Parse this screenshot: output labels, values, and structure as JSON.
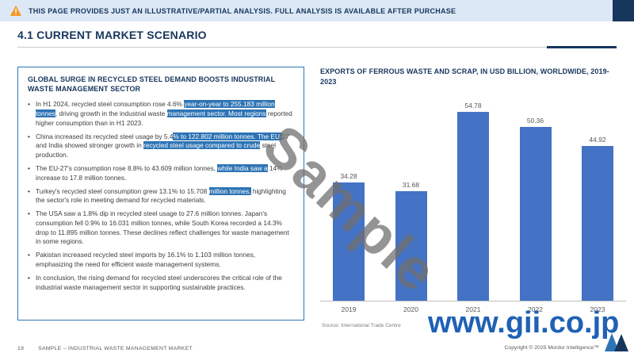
{
  "banner": {
    "text": "THIS PAGE PROVIDES JUST AN ILLUSTRATIVE/PARTIAL ANALYSIS. FULL ANALYSIS IS AVAILABLE AFTER PURCHASE"
  },
  "page_title": "4.1 CURRENT MARKET SCENARIO",
  "left_panel": {
    "heading": "GLOBAL SURGE IN RECYCLED STEEL DEMAND BOOSTS INDUSTRIAL WASTE MANAGEMENT SECTOR",
    "bullets": [
      {
        "segments": [
          {
            "t": "In H1 2024, recycled steel consumption rose 4.6% ",
            "h": false
          },
          {
            "t": "year-on-year to 255.183 million tonnes",
            "h": true
          },
          {
            "t": ", driving growth in the industrial waste ",
            "h": false
          },
          {
            "t": "management sector. Most regions",
            "h": true
          },
          {
            "t": " reported higher consumption than in H1 2023.",
            "h": false
          }
        ]
      },
      {
        "segments": [
          {
            "t": "China increased its recycled steel usage by 5.4",
            "h": false
          },
          {
            "t": "% to 122.802 million tonnes. The EU-",
            "h": true
          },
          {
            "t": "27 and India showed stronger growth in ",
            "h": false
          },
          {
            "t": "recycled steel usage compared to crude",
            "h": true
          },
          {
            "t": " steel production.",
            "h": false
          }
        ]
      },
      {
        "segments": [
          {
            "t": "The EU-27's consumption rose 8.8% to 43.609 million tonnes, ",
            "h": false
          },
          {
            "t": "while India saw a",
            "h": true
          },
          {
            "t": " 14% increase to 17.8 million tonnes.",
            "h": false
          }
        ]
      },
      {
        "segments": [
          {
            "t": "Turkey's recycled steel consumption grew 13.1% to 15.708 ",
            "h": false
          },
          {
            "t": "million tonnes,",
            "h": true
          },
          {
            "t": " highlighting the sector's role in meeting demand for recycled materials.",
            "h": false
          }
        ]
      },
      {
        "segments": [
          {
            "t": "The USA saw a 1.8% dip in recycled steel usage to 27.6 million tonnes. Japan's consumption fell 0.9% to 16.031 million tonnes, while South Korea recorded a 14.3% drop to 11.895 million tonnes. These declines reflect challenges for waste management in some regions.",
            "h": false
          }
        ]
      },
      {
        "segments": [
          {
            "t": "Pakistan increased recycled steel imports by 16.1% to 1.103 million tonnes, emphasizing the need for efficient waste management systems.",
            "h": false
          }
        ]
      },
      {
        "segments": [
          {
            "t": "In conclusion, the rising demand for recycled steel underscores the critical role of the industrial waste management sector in supporting sustainable practices.",
            "h": false
          }
        ]
      }
    ]
  },
  "chart": {
    "title": "EXPORTS OF FERROUS WASTE AND SCRAP, IN USD BILLION, WORLDWIDE, 2019-2023",
    "source": "Source: International Trade Centre"
  },
  "chart_data": {
    "type": "bar",
    "categories": [
      "2019",
      "2020",
      "2021",
      "2022",
      "2023"
    ],
    "values": [
      34.28,
      31.68,
      54.78,
      50.36,
      44.92
    ],
    "title": "Exports of ferrous waste and scrap, in USD billion, worldwide, 2019-2023",
    "xlabel": "",
    "ylabel": "USD billion",
    "ylim": [
      0,
      60
    ],
    "bar_color": "#4472c4",
    "grid": false,
    "legend": false,
    "value_labels": true
  },
  "watermarks": {
    "diagonal": "Sample",
    "site": "www.gii.co.jp"
  },
  "footer": {
    "page_number": "19",
    "label": "SAMPLE – INDUSTRIAL WASTE MANAGEMENT MARKET",
    "copyright": "Copyright © 2025 Mordor Intelligence™"
  },
  "icons": {
    "banner_icon": "warning-icon",
    "brand_logo": "mordor-intelligence-logo"
  },
  "colors": {
    "accent_navy": "#17365d",
    "panel_border": "#2e75b6",
    "bar": "#4472c4",
    "highlight": "#2e74b5",
    "banner_bg": "#dce8f5",
    "watermark_blue": "#1f61b5"
  }
}
